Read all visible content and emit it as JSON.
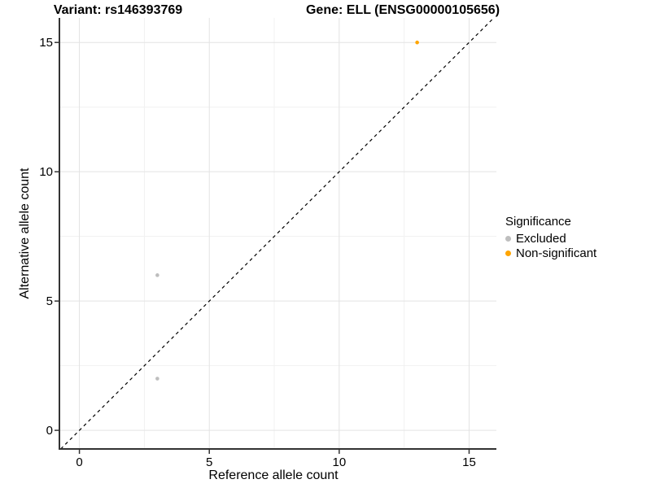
{
  "titles": {
    "left": "Variant: rs146393769",
    "right": "Gene: ELL (ENSG00000105656)"
  },
  "chart_data": {
    "type": "scatter",
    "xlabel": "Reference allele count",
    "ylabel": "Alternative allele count",
    "xlim": [
      -0.77,
      16.05
    ],
    "ylim": [
      -0.72,
      15.95
    ],
    "x_major_ticks": [
      0,
      5,
      10,
      15
    ],
    "y_major_ticks": [
      0,
      5,
      10,
      15
    ],
    "x_minor_ticks": [
      2.5,
      7.5,
      12.5
    ],
    "y_minor_ticks": [
      2.5,
      7.5,
      12.5
    ],
    "grid": true,
    "reference_line": {
      "type": "identity",
      "style": "dashed",
      "color": "#000000"
    },
    "series": [
      {
        "name": "Excluded",
        "color": "#BEBEBE",
        "points": [
          {
            "x": 3,
            "y": 6
          },
          {
            "x": 3,
            "y": 2
          }
        ]
      },
      {
        "name": "Non-significant",
        "color": "#FFA500",
        "points": [
          {
            "x": 13,
            "y": 15
          }
        ]
      }
    ],
    "legend": {
      "title": "Significance",
      "position": "right",
      "entries": [
        {
          "label": "Excluded",
          "color": "#BEBEBE"
        },
        {
          "label": "Non-significant",
          "color": "#FFA500"
        }
      ]
    },
    "colors": {
      "axis": "#333333",
      "grid_major": "#e3e3e3",
      "grid_minor": "#f1f1f1",
      "background": "#ffffff"
    }
  }
}
